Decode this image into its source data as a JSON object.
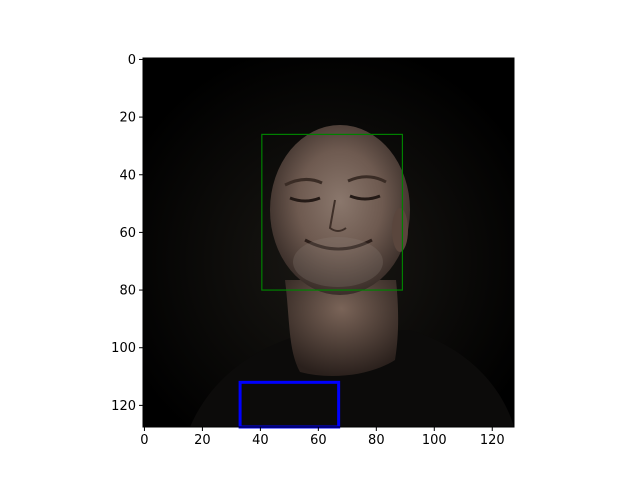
{
  "image": {
    "width": 128,
    "height": 128,
    "description_hidden": true
  },
  "axes": {
    "x_ticks": [
      {
        "value": 0,
        "label": "0"
      },
      {
        "value": 20,
        "label": "20"
      },
      {
        "value": 40,
        "label": "40"
      },
      {
        "value": 60,
        "label": "60"
      },
      {
        "value": 80,
        "label": "80"
      },
      {
        "value": 100,
        "label": "100"
      },
      {
        "value": 120,
        "label": "120"
      }
    ],
    "y_ticks": [
      {
        "value": 0,
        "label": "0"
      },
      {
        "value": 20,
        "label": "20"
      },
      {
        "value": 40,
        "label": "40"
      },
      {
        "value": 60,
        "label": "60"
      },
      {
        "value": 80,
        "label": "80"
      },
      {
        "value": 100,
        "label": "100"
      },
      {
        "value": 120,
        "label": "120"
      }
    ]
  },
  "boxes": [
    {
      "name": "face-box",
      "x0": 41,
      "y0": 26.5,
      "x1": 89.5,
      "y1": 80.5,
      "color": "#008000"
    },
    {
      "name": "region-box",
      "x0": 33.5,
      "y0": 112.5,
      "x1": 67.5,
      "y1": 128,
      "color": "#0000ff"
    }
  ]
}
